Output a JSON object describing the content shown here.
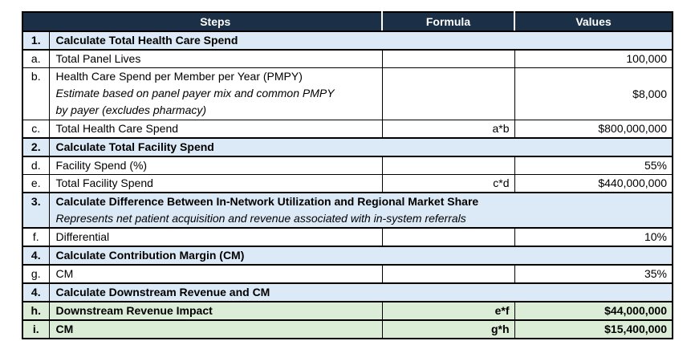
{
  "colors": {
    "header_bg": "#1b3047",
    "section_bg": "#dce9f6",
    "result_bg": "#dbedd6",
    "border": "#000000"
  },
  "table": {
    "headers": {
      "steps": "Steps",
      "formula": "Formula",
      "values": "Values"
    },
    "rows": [
      {
        "num": "1.",
        "label": "Calculate Total Health Care Spend",
        "type": "section"
      },
      {
        "num": "a.",
        "label": "Total Panel Lives",
        "formula": "",
        "value": "100,000"
      },
      {
        "num": "b.",
        "label": "Health Care Spend per Member per Year (PMPY)",
        "note_line1": "Estimate based on panel payer mix and common PMPY",
        "note_line2": "by payer (excludes pharmacy)",
        "formula": "",
        "value": "$8,000"
      },
      {
        "num": "c.",
        "label": "Total Health Care Spend",
        "formula": "a*b",
        "value": "$800,000,000"
      },
      {
        "num": "2.",
        "label": "Calculate Total Facility Spend",
        "type": "section"
      },
      {
        "num": "d.",
        "label": "Facility Spend (%)",
        "formula": "",
        "value": "55%"
      },
      {
        "num": "e.",
        "label": "Total Facility Spend",
        "formula": "c*d",
        "value": "$440,000,000"
      },
      {
        "num": "3.",
        "label": "Calculate Difference Between In-Network Utilization and Regional Market Share",
        "note": "Represents net patient acquisition and revenue associated with in-system referrals",
        "type": "section"
      },
      {
        "num": "f.",
        "label": "Differential",
        "formula": "",
        "value": "10%"
      },
      {
        "num": "4.",
        "label": "Calculate Contribution Margin (CM)",
        "type": "section"
      },
      {
        "num": "g.",
        "label": "CM",
        "formula": "",
        "value": "35%"
      },
      {
        "num": "4.",
        "label": "Calculate Downstream Revenue and CM",
        "type": "section"
      },
      {
        "num": "h.",
        "label": "Downstream Revenue Impact",
        "formula": "e*f",
        "value": "$44,000,000",
        "type": "result"
      },
      {
        "num": "i.",
        "label": "CM",
        "formula": "g*h",
        "value": "$15,400,000",
        "type": "result"
      }
    ]
  }
}
